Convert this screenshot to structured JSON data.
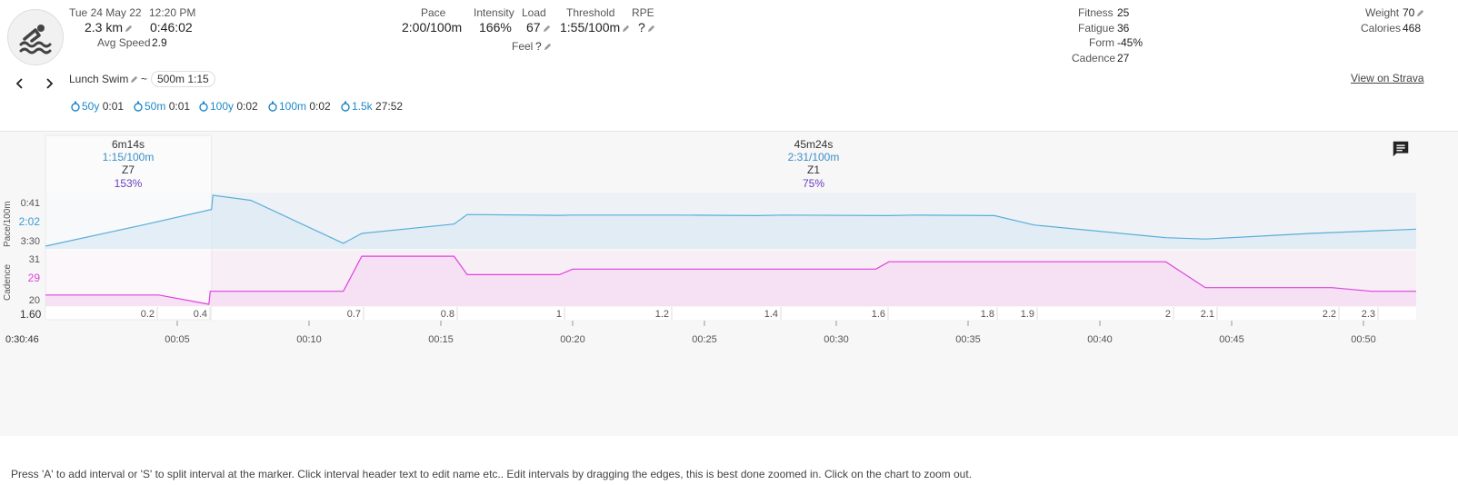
{
  "activity": {
    "date": "Tue 24 May 22",
    "time": "12:20 PM",
    "distance": "2.3 km",
    "duration": "0:46:02",
    "avg_speed_label": "Avg Speed",
    "avg_speed": "2.9",
    "sport_icon": "swimmer-icon"
  },
  "metrics": {
    "pace_label": "Pace",
    "pace": "2:00/100m",
    "intensity_label": "Intensity",
    "intensity": "166%",
    "load_label": "Load",
    "load": "67",
    "threshold_label": "Threshold",
    "threshold": "1:55/100m",
    "rpe_label": "RPE",
    "rpe": "?",
    "feel_label": "Feel",
    "feel": "?"
  },
  "fitness": {
    "fitness_label": "Fitness",
    "fitness": "25",
    "fatigue_label": "Fatigue",
    "fatigue": "36",
    "form_label": "Form",
    "form": "-45%",
    "cadence_label": "Cadence",
    "cadence": "27"
  },
  "body": {
    "weight_label": "Weight",
    "weight": "70",
    "calories_label": "Calories",
    "calories": "468"
  },
  "title": {
    "name": "Lunch Swim",
    "tilde": "~",
    "tag": "500m 1:15"
  },
  "strava_link": "View on Strava",
  "laps": [
    {
      "dist": "50y",
      "time": "0:01"
    },
    {
      "dist": "50m",
      "time": "0:01"
    },
    {
      "dist": "100y",
      "time": "0:02"
    },
    {
      "dist": "100m",
      "time": "0:02"
    },
    {
      "dist": "1.5k",
      "time": "27:52"
    }
  ],
  "intervals": [
    {
      "duration": "6m14s",
      "pace": "1:15/100m",
      "zone": "Z7",
      "pct": "153%"
    },
    {
      "duration": "45m24s",
      "pace": "2:31/100m",
      "zone": "Z1",
      "pct": "75%"
    }
  ],
  "chart_data": {
    "type": "line",
    "pace_axis": {
      "label": "Pace/100m",
      "ticks": [
        "0:41",
        "3:30"
      ],
      "marker_value": "2:02"
    },
    "cadence_axis": {
      "label": "Cadence",
      "ticks": [
        "31",
        "20"
      ],
      "marker_value": "29"
    },
    "distance_axis": {
      "marker_value": "1.60",
      "ticks": [
        "0.2",
        "0.4",
        "0.7",
        "0.8",
        "1",
        "1.2",
        "1.4",
        "1.6",
        "1.8",
        "1.9",
        "2",
        "2.1",
        "2.2",
        "2.3"
      ]
    },
    "time_axis": {
      "marker_value": "0:30:46",
      "ticks": [
        "00:05",
        "00:10",
        "00:15",
        "00:20",
        "00:25",
        "00:30",
        "00:35",
        "00:40",
        "00:45",
        "00:50"
      ]
    },
    "x_range_min": [
      0,
      52
    ],
    "series": [
      {
        "name": "Pace",
        "color": "#5aaed8",
        "x": [
          0,
          3.7,
          6.3,
          6.35,
          7.8,
          11.3,
          12.0,
          15.5,
          16.0,
          19.5,
          20.0,
          22,
          24,
          27,
          28,
          32,
          33,
          36,
          37.5,
          42.5,
          44,
          48,
          52
        ],
        "y_sec": [
          180,
          105,
          50,
          0,
          18,
          170,
          135,
          102,
          68,
          71,
          70,
          70,
          70,
          72,
          70,
          72,
          70,
          72,
          105,
          150,
          155,
          135,
          120
        ]
      },
      {
        "name": "Cadence",
        "color": "#e040e0",
        "x": [
          0,
          4.3,
          6.2,
          6.25,
          11.3,
          12.0,
          15.5,
          16.0,
          19.5,
          20.0,
          31.5,
          32.0,
          42.5,
          44.0,
          48.3,
          48.8,
          50.3,
          52
        ],
        "y": [
          20,
          20,
          17.5,
          21,
          21,
          30.5,
          30.5,
          25.5,
          25.5,
          27,
          27,
          29,
          29,
          22,
          22,
          22,
          21,
          21
        ]
      }
    ]
  },
  "footer_text": "Press 'A' to add interval or 'S' to split interval at the marker. Click interval header text to edit name etc.. Edit intervals by dragging the edges, this is best done zoomed in. Click on the chart to zoom out.",
  "colors": {
    "pace_line": "#5aaed8",
    "cadence_line": "#e040e0",
    "interval_pace": "#3a8fc8",
    "interval_pct": "#6a3fc0",
    "lap_blue": "#1e88c8"
  }
}
